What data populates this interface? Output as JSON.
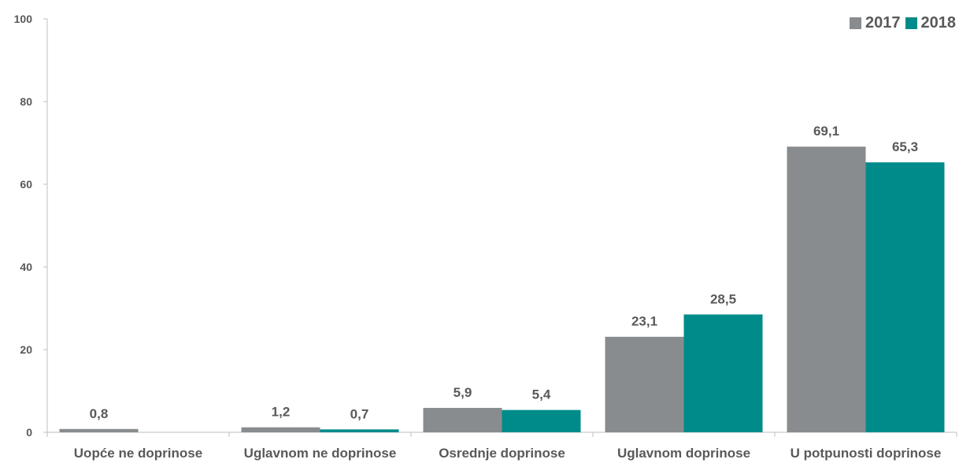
{
  "chart_data": {
    "type": "bar",
    "categories": [
      "Uopće ne doprinose",
      "Uglavnom ne doprinose",
      "Osrednje doprinose",
      "Uglavnom doprinose",
      "U potpunosti doprinose"
    ],
    "series": [
      {
        "name": "2017",
        "color": "#898c8e",
        "values": [
          0.8,
          1.2,
          5.9,
          23.1,
          69.1
        ],
        "labels": [
          "0,8",
          "1,2",
          "5,9",
          "23,1",
          "69,1"
        ]
      },
      {
        "name": "2018",
        "color": "#008b8b",
        "values": [
          null,
          0.7,
          5.4,
          28.5,
          65.3
        ],
        "labels": [
          "",
          "0,7",
          "5,4",
          "28,5",
          "65,3"
        ]
      }
    ],
    "yticks": [
      "0",
      "20",
      "40",
      "60",
      "80",
      "100"
    ],
    "ylim": [
      0,
      100
    ],
    "title": "",
    "xlabel": "",
    "ylabel": "",
    "legend_position": "top-right",
    "grid": false
  }
}
